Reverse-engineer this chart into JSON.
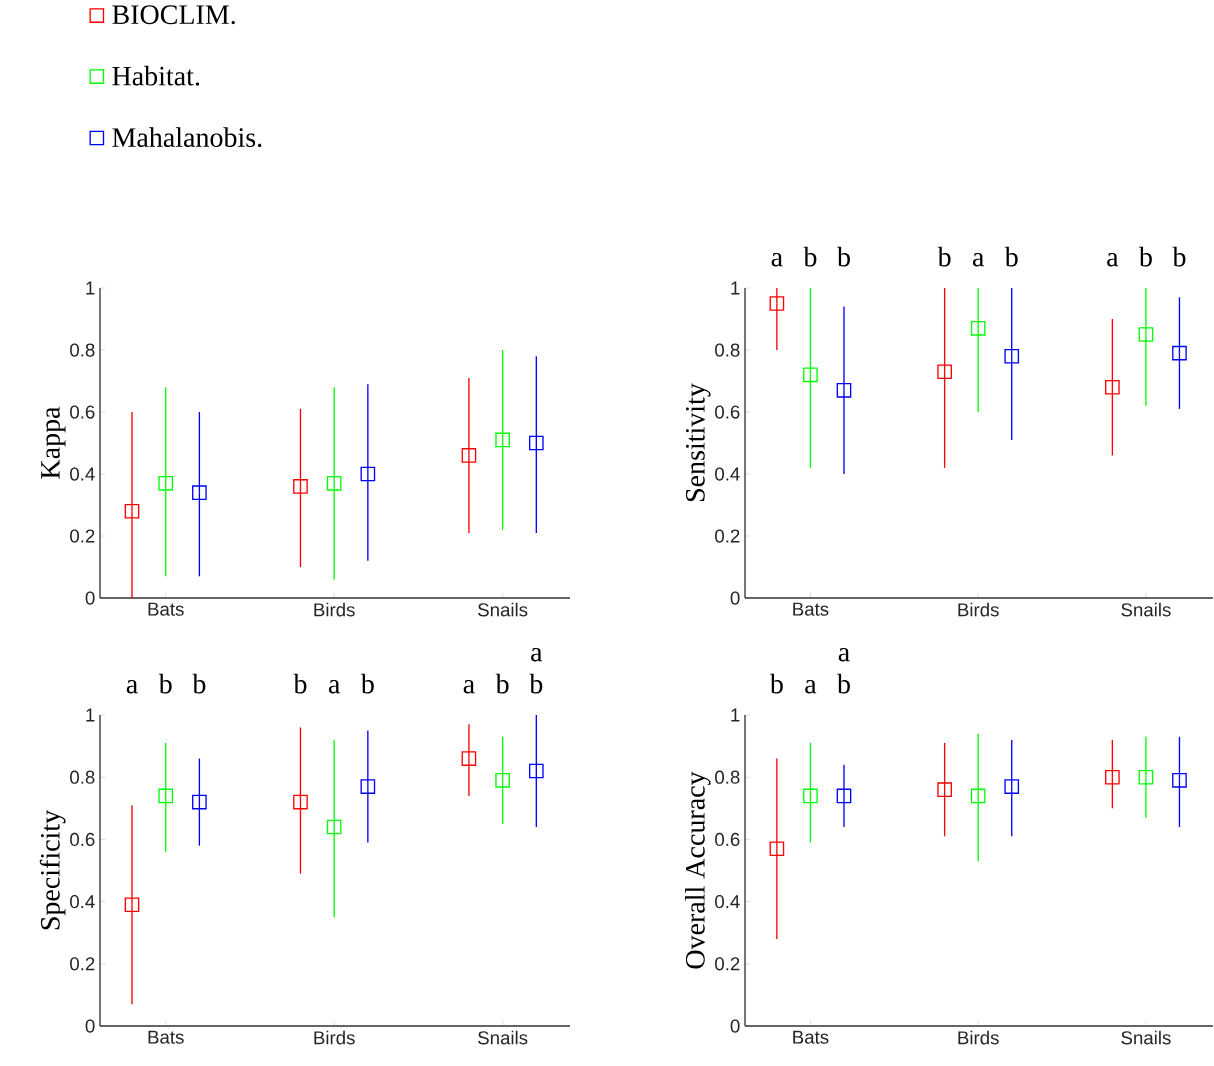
{
  "chart_data": [
    {
      "type": "scatter",
      "categories": [
        "Bats",
        "Birds",
        "Snails"
      ],
      "ylabel": "Kappa",
      "ylim": [
        0,
        1
      ],
      "yticks": [
        0,
        0.2,
        0.4,
        0.6,
        0.8,
        1
      ],
      "marker": "square",
      "legend": "top left",
      "series": [
        {
          "name": "BIOCLIM.",
          "color": "#ff0000",
          "values": [
            0.28,
            0.36,
            0.46
          ],
          "errors": [
            [
              0,
              0.6
            ],
            [
              0.1,
              0.61
            ],
            [
              0.21,
              0.71
            ]
          ]
        },
        {
          "name": "Habitat.",
          "color": "#00ff00",
          "values": [
            0.37,
            0.37,
            0.51
          ],
          "errors": [
            [
              0.07,
              0.68
            ],
            [
              0.06,
              0.68
            ],
            [
              0.22,
              0.8
            ]
          ]
        },
        {
          "name": "Mahalanobis.",
          "color": "#0000ff",
          "values": [
            0.34,
            0.4,
            0.5
          ],
          "errors": [
            [
              0.07,
              0.6
            ],
            [
              0.12,
              0.69
            ],
            [
              0.21,
              0.78
            ]
          ]
        }
      ]
    },
    {
      "type": "scatter",
      "categories": [
        "Bats",
        "Birds",
        "Snails"
      ],
      "ylabel": "Sensitivity",
      "ylim": [
        0,
        1
      ],
      "yticks": [
        0,
        0.2,
        0.4,
        0.6,
        0.8,
        1
      ],
      "marker": "square",
      "annotations": [
        "a",
        "b",
        "b",
        "b",
        "a",
        "b",
        "a",
        "b",
        "b"
      ],
      "series": [
        {
          "color": "#ff0000",
          "values": [
            0.95,
            0.73,
            0.68
          ],
          "errors": [
            [
              0.8,
              1
            ],
            [
              0.42,
              1
            ],
            [
              0.46,
              0.9
            ]
          ]
        },
        {
          "color": "#00ff00",
          "values": [
            0.72,
            0.87,
            0.85
          ],
          "errors": [
            [
              0.42,
              1
            ],
            [
              0.6,
              1
            ],
            [
              0.62,
              1
            ]
          ]
        },
        {
          "color": "#0000ff",
          "values": [
            0.67,
            0.78,
            0.79
          ],
          "errors": [
            [
              0.4,
              0.94
            ],
            [
              0.51,
              1
            ],
            [
              0.61,
              0.97
            ]
          ]
        }
      ]
    },
    {
      "type": "scatter",
      "categories": [
        "Bats",
        "Birds",
        "Snails"
      ],
      "ylabel": "Specificity",
      "ylim": [
        0,
        1
      ],
      "yticks": [
        0,
        0.2,
        0.4,
        0.6,
        0.8,
        1
      ],
      "marker": "square",
      "annotations": [
        "a",
        "b",
        "b",
        "b",
        "a",
        "b",
        "a",
        "b",
        "a b"
      ],
      "series": [
        {
          "color": "#ff0000",
          "values": [
            0.39,
            0.72,
            0.86
          ],
          "errors": [
            [
              0.07,
              0.71
            ],
            [
              0.49,
              0.96
            ],
            [
              0.74,
              0.97
            ]
          ]
        },
        {
          "color": "#00ff00",
          "values": [
            0.74,
            0.64,
            0.79
          ],
          "errors": [
            [
              0.56,
              0.91
            ],
            [
              0.35,
              0.92
            ],
            [
              0.65,
              0.93
            ]
          ]
        },
        {
          "color": "#0000ff",
          "values": [
            0.72,
            0.77,
            0.82
          ],
          "errors": [
            [
              0.58,
              0.86
            ],
            [
              0.59,
              0.95
            ],
            [
              0.64,
              1
            ]
          ]
        }
      ]
    },
    {
      "type": "scatter",
      "categories": [
        "Bats",
        "Birds",
        "Snails"
      ],
      "ylabel": "Overall Accuracy",
      "ylim": [
        0,
        1
      ],
      "yticks": [
        0,
        0.2,
        0.4,
        0.6,
        0.8,
        1
      ],
      "marker": "square",
      "annotations": [
        "b",
        "a",
        "a b"
      ],
      "series": [
        {
          "color": "#ff0000",
          "values": [
            0.57,
            0.76,
            0.8
          ],
          "errors": [
            [
              0.28,
              0.86
            ],
            [
              0.61,
              0.91
            ],
            [
              0.7,
              0.92
            ]
          ]
        },
        {
          "color": "#00ff00",
          "values": [
            0.74,
            0.74,
            0.8
          ],
          "errors": [
            [
              0.59,
              0.91
            ],
            [
              0.53,
              0.94
            ],
            [
              0.67,
              0.93
            ]
          ]
        },
        {
          "color": "#0000ff",
          "values": [
            0.74,
            0.77,
            0.79
          ],
          "errors": [
            [
              0.64,
              0.84
            ],
            [
              0.61,
              0.92
            ],
            [
              0.64,
              0.93
            ]
          ]
        }
      ]
    }
  ]
}
